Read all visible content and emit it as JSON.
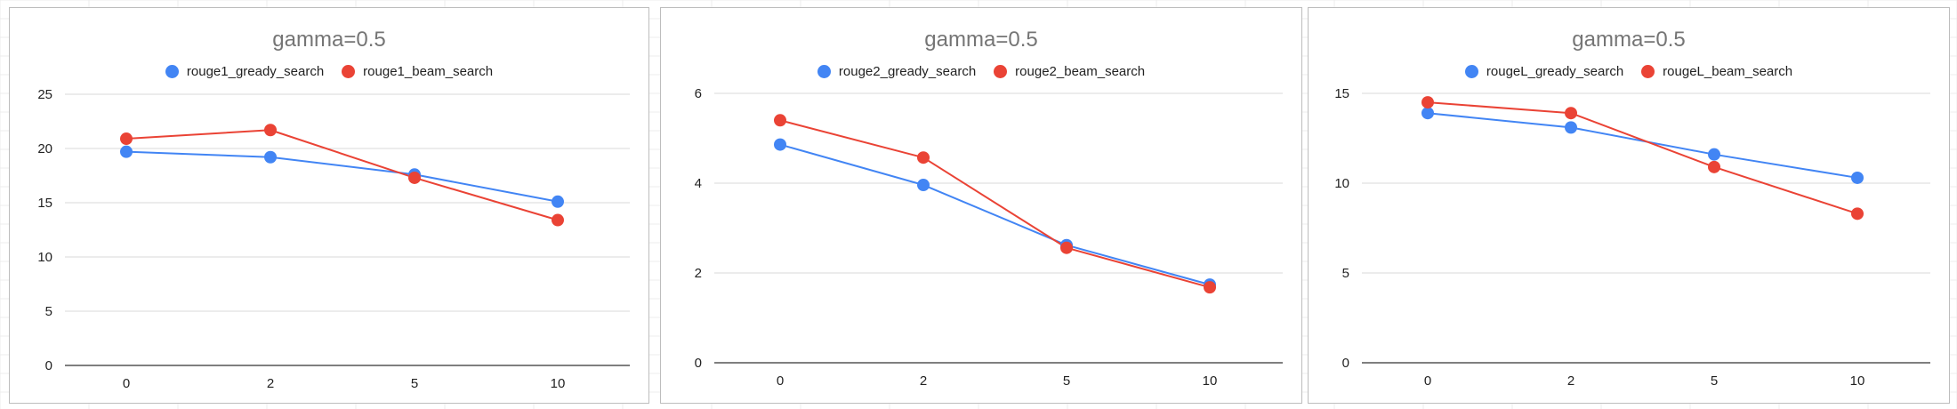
{
  "colors": {
    "gready": "#4285f4",
    "beam": "#ea4335",
    "grid": "#d9d9d9",
    "axis": "#333333",
    "title": "#757575"
  },
  "chart_data": [
    {
      "type": "line",
      "title": "gamma=0.5",
      "categories": [
        "0",
        "2",
        "5",
        "10"
      ],
      "yticks": [
        "0",
        "5",
        "10",
        "15",
        "20",
        "25"
      ],
      "ylim": [
        0,
        25
      ],
      "grid": true,
      "legend_position": "top",
      "series": [
        {
          "name": "rouge1_gready_search",
          "color": "#4285f4",
          "values": [
            19.7,
            19.2,
            17.6,
            15.1
          ]
        },
        {
          "name": "rouge1_beam_search",
          "color": "#ea4335",
          "values": [
            20.9,
            21.7,
            17.3,
            13.4
          ]
        }
      ]
    },
    {
      "type": "line",
      "title": "gamma=0.5",
      "categories": [
        "0",
        "2",
        "5",
        "10"
      ],
      "yticks": [
        "0",
        "2",
        "4",
        "6"
      ],
      "ylim": [
        0,
        6
      ],
      "grid": true,
      "legend_position": "top",
      "series": [
        {
          "name": "rouge2_gready_search",
          "color": "#4285f4",
          "values": [
            4.86,
            3.96,
            2.62,
            1.74
          ]
        },
        {
          "name": "rouge2_beam_search",
          "color": "#ea4335",
          "values": [
            5.4,
            4.57,
            2.56,
            1.68
          ]
        }
      ]
    },
    {
      "type": "line",
      "title": "gamma=0.5",
      "categories": [
        "0",
        "2",
        "5",
        "10"
      ],
      "yticks": [
        "0",
        "5",
        "10",
        "15"
      ],
      "ylim": [
        0,
        15
      ],
      "grid": true,
      "legend_position": "top",
      "series": [
        {
          "name": "rougeL_gready_search",
          "color": "#4285f4",
          "values": [
            13.9,
            13.1,
            11.6,
            10.3
          ]
        },
        {
          "name": "rougeL_beam_search",
          "color": "#ea4335",
          "values": [
            14.5,
            13.9,
            10.9,
            8.3
          ]
        }
      ]
    }
  ]
}
